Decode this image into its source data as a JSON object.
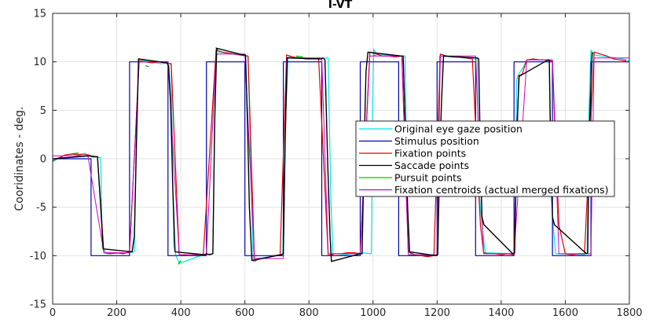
{
  "chart_data": {
    "type": "line",
    "title": "I-VT",
    "xlabel": "",
    "ylabel": "Cooridinates - deg.",
    "xlim": [
      0,
      1800
    ],
    "ylim": [
      -15,
      15
    ],
    "xticks": [
      0,
      200,
      400,
      600,
      800,
      1000,
      1200,
      1400,
      1600,
      1800
    ],
    "yticks": [
      -15,
      -10,
      -5,
      0,
      5,
      10,
      15
    ],
    "grid": true,
    "legend_position": "right-middle",
    "colors": {
      "original": "#00e5e5",
      "stimulus": "#0000bb",
      "fixation": "#e00000",
      "saccade": "#000000",
      "pursuit": "#00cc00",
      "centroid": "#cc00cc",
      "grid": "#e3e3e3",
      "axis": "#262626"
    },
    "series": [
      {
        "name": "Original eye gaze position",
        "key": "original",
        "x": [
          0,
          40,
          80,
          110,
          122,
          135,
          150,
          155,
          170,
          240,
          255,
          262,
          270,
          300,
          340,
          360,
          370,
          378,
          385,
          395,
          470,
          500,
          505,
          510,
          520,
          600,
          610,
          620,
          626,
          633,
          640,
          700,
          718,
          725,
          735,
          830,
          860,
          868,
          875,
          885,
          965,
          995,
          998,
          1002,
          1010,
          1090,
          1100,
          1106,
          1112,
          1120,
          1190,
          1200,
          1204,
          1208,
          1215,
          1320,
          1325,
          1330,
          1340,
          1350,
          1440,
          1445,
          1448,
          1452,
          1470,
          1480,
          1540,
          1550,
          1555,
          1562,
          1570,
          1660,
          1668,
          1673,
          1680,
          1690,
          1780,
          1800
        ],
        "y": [
          -0.3,
          0.4,
          0.5,
          0.4,
          0.3,
          0.2,
          0.1,
          -9.2,
          -9.8,
          -9.7,
          -9.6,
          4,
          10.3,
          10,
          9.8,
          9.9,
          9.7,
          -9,
          -10,
          -10.8,
          -9.9,
          -9.8,
          2,
          11.5,
          11,
          10.6,
          10.6,
          -3,
          -10.6,
          -10.6,
          -10.3,
          -10,
          -9.8,
          2,
          10.5,
          10.3,
          10.4,
          -4,
          -10,
          -10,
          -9.7,
          -9.8,
          4,
          11.3,
          10.8,
          10.6,
          10.6,
          -3,
          -9.5,
          -10,
          -10,
          -9.9,
          2,
          10.6,
          10.6,
          10.3,
          10.3,
          -3,
          -6.8,
          -9.7,
          -9.8,
          -4,
          8,
          8.6,
          9.5,
          10.2,
          10.2,
          10,
          -3,
          -6.8,
          -9.8,
          -9.9,
          -9.7,
          4,
          11.2,
          10.7,
          10.3,
          10.1
        ]
      },
      {
        "name": "Stimulus position",
        "key": "stimulus",
        "x": [
          0,
          120,
          120,
          240,
          240,
          360,
          360,
          480,
          480,
          600,
          600,
          720,
          720,
          840,
          840,
          960,
          960,
          1080,
          1080,
          1200,
          1200,
          1320,
          1320,
          1440,
          1440,
          1560,
          1560,
          1680,
          1680,
          1800
        ],
        "y": [
          0,
          0,
          -10,
          -10,
          10,
          10,
          -10,
          -10,
          10,
          10,
          -10,
          -10,
          10,
          10,
          -10,
          -10,
          10,
          10,
          -10,
          -10,
          10,
          10,
          -10,
          -10,
          10,
          10,
          -10,
          -10,
          10,
          10
        ]
      },
      {
        "name": "Fixation points",
        "key": "fixation",
        "x": [
          0,
          20,
          40,
          60,
          80,
          100,
          120,
          140,
          160,
          180,
          200,
          220,
          240,
          270,
          290,
          310,
          330,
          350,
          370,
          395,
          410,
          430,
          450,
          470,
          510,
          530,
          550,
          570,
          590,
          610,
          630,
          650,
          670,
          690,
          710,
          730,
          750,
          770,
          790,
          810,
          830,
          860,
          880,
          900,
          920,
          940,
          960,
          990,
          1010,
          1030,
          1050,
          1070,
          1090,
          1110,
          1130,
          1150,
          1170,
          1190,
          1210,
          1230,
          1250,
          1270,
          1290,
          1310,
          1335,
          1345,
          1360,
          1380,
          1400,
          1420,
          1440,
          1455,
          1465,
          1480,
          1500,
          1520,
          1540,
          1560,
          1580,
          1600,
          1620,
          1640,
          1660,
          1690,
          1710,
          1730,
          1750,
          1770,
          1790
        ],
        "y": [
          -0.2,
          0.1,
          0.4,
          0.5,
          0.4,
          0.5,
          0.3,
          0.2,
          -9.7,
          -9.8,
          -9.7,
          -9.8,
          -9.6,
          10.1,
          10,
          9.9,
          10,
          9.9,
          9.8,
          -10,
          -9.9,
          -10,
          -9.9,
          -9.9,
          11.2,
          11,
          10.9,
          10.8,
          10.7,
          10.6,
          -10.5,
          -10.3,
          -10.2,
          -10,
          -9.9,
          10.7,
          10.5,
          10.4,
          10.3,
          10.3,
          10.4,
          -10,
          -9.8,
          -9.8,
          -9.7,
          -9.7,
          -9.8,
          11.0,
          10.8,
          10.6,
          10.6,
          10.5,
          10.6,
          -9.6,
          -9.9,
          -10,
          -10.1,
          -10.0,
          10.8,
          10.6,
          10.5,
          10.5,
          10.4,
          10.3,
          -6.8,
          -9.7,
          -9.8,
          -9.8,
          -9.9,
          -9.8,
          -9.9,
          8.6,
          8.7,
          10.2,
          10.3,
          10.2,
          10.2,
          10.1,
          -6.8,
          -9.8,
          -9.9,
          -9.8,
          -9.8,
          11.0,
          10.8,
          10.6,
          10.3,
          10.2,
          10.1
        ]
      },
      {
        "name": "Saccade points",
        "key": "saccade",
        "x": [
          0,
          115,
          125,
          140,
          150,
          158,
          248,
          255,
          262,
          268,
          356,
          362,
          368,
          375,
          382,
          474,
          480,
          490,
          500,
          506,
          512,
          596,
          602,
          608,
          614,
          622,
          714,
          720,
          726,
          732,
          838,
          844,
          850,
          858,
          866,
          870,
          960,
          966,
          972,
          978,
          984,
          1088,
          1094,
          1100,
          1108,
          1114,
          1196,
          1202,
          1208,
          1214,
          1220,
          1326,
          1330,
          1334,
          1340,
          1346,
          1436,
          1442,
          1446,
          1450,
          1456,
          1546,
          1550,
          1554,
          1560,
          1566,
          1666,
          1670,
          1674,
          1678,
          1684
        ],
        "y": [
          0,
          0.3,
          0.2,
          0.2,
          -5,
          -9.3,
          -9.6,
          -8,
          2,
          10.3,
          9.9,
          9.6,
          6,
          -3,
          -9.6,
          -9.9,
          -9.8,
          -9.9,
          -9.8,
          4,
          11.4,
          10.7,
          10.7,
          4,
          -5,
          -10.5,
          -9.9,
          -9.8,
          2,
          10.4,
          10.3,
          10.4,
          10.2,
          0,
          -8,
          -10.6,
          -9.8,
          -9.8,
          1,
          9,
          11,
          10.6,
          10.6,
          4,
          -5,
          -9.6,
          -10,
          -9.9,
          0,
          6,
          10.6,
          10.4,
          10.3,
          2,
          -6,
          -6.8,
          -9.8,
          -9.7,
          -3,
          4,
          8.5,
          10.2,
          10.2,
          2,
          -6,
          -6.8,
          -9.8,
          -9.7,
          1,
          6,
          11
        ]
      },
      {
        "name": "Pursuit points",
        "key": "pursuit",
        "x": [
          60,
          80,
          290,
          300,
          392,
          400,
          760,
          780,
          1000,
          1010
        ],
        "y": [
          0.5,
          0.6,
          9.6,
          9.5,
          -10.9,
          -10.5,
          10.6,
          10.5,
          10.7,
          10.6
        ]
      },
      {
        "name": "Fixation centroids (actual merged fixations)",
        "key": "centroid",
        "x": [
          0,
          110,
          160,
          240,
          270,
          360,
          395,
          480,
          510,
          600,
          630,
          720,
          730,
          840,
          860,
          960,
          990,
          1090,
          1110,
          1200,
          1210,
          1320,
          1345,
          1440,
          1480,
          1560,
          1580,
          1680,
          1690,
          1800
        ],
        "y": [
          0.3,
          0.3,
          -9.7,
          -9.7,
          10.0,
          10.0,
          -9.9,
          -9.9,
          10.8,
          10.8,
          -10.3,
          -10.3,
          10.4,
          10.4,
          -9.8,
          -9.8,
          10.6,
          10.6,
          -9.9,
          -9.9,
          10.6,
          10.6,
          -9.8,
          -9.8,
          10.2,
          10.2,
          -9.8,
          -9.8,
          10.4,
          10.4
        ]
      }
    ]
  }
}
